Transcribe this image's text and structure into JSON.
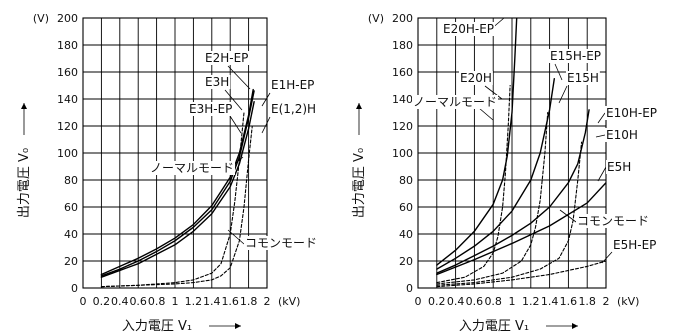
{
  "chart_data": [
    {
      "type": "line",
      "y_unit": "(V)",
      "x_unit": "(kV)",
      "xlabel": "入力電圧 V₁",
      "ylabel": "出力電圧 V₀",
      "xlim": [
        0,
        2
      ],
      "ylim": [
        0,
        200
      ],
      "x_ticks": [
        "0",
        "0.2",
        "0.4",
        "0.6",
        "0.8",
        "1",
        "1.2",
        "1.4",
        "1.6",
        "1.8",
        "2"
      ],
      "y_ticks": [
        "0",
        "20",
        "40",
        "60",
        "80",
        "100",
        "120",
        "140",
        "160",
        "180",
        "200"
      ],
      "grid": true,
      "series": [
        {
          "name": "E2H-EP",
          "style": "solid",
          "x": [
            0.2,
            0.4,
            0.6,
            0.8,
            1.0,
            1.2,
            1.4,
            1.6,
            1.7,
            1.8,
            1.85
          ],
          "y": [
            10,
            16,
            22,
            29,
            37,
            47,
            61,
            82,
            100,
            128,
            147
          ]
        },
        {
          "name": "E3H",
          "style": "solid",
          "x": [
            0.2,
            0.4,
            0.6,
            0.8,
            1.0,
            1.2,
            1.4,
            1.6,
            1.7,
            1.8,
            1.86
          ],
          "y": [
            9,
            14,
            20,
            27,
            35,
            45,
            58,
            79,
            97,
            126,
            146
          ]
        },
        {
          "name": "E3H-EP",
          "style": "dashed",
          "x": [
            0.2,
            0.6,
            1.0,
            1.2,
            1.4,
            1.5,
            1.6,
            1.65,
            1.7,
            1.75
          ],
          "y": [
            1,
            2,
            4,
            6,
            11,
            18,
            40,
            64,
            95,
            130
          ]
        },
        {
          "name": "E1H-EP",
          "style": "solid",
          "x": [
            0.2,
            0.4,
            0.6,
            0.8,
            1.0,
            1.2,
            1.4,
            1.6,
            1.7,
            1.8,
            1.86
          ],
          "y": [
            8,
            13,
            18,
            25,
            32,
            42,
            55,
            75,
            92,
            118,
            138
          ]
        },
        {
          "name": "E(1,2)H",
          "style": "dashed",
          "x": [
            0.2,
            0.6,
            1.0,
            1.2,
            1.4,
            1.5,
            1.6,
            1.7,
            1.75,
            1.8,
            1.84
          ],
          "y": [
            1,
            2,
            3,
            4,
            6,
            9,
            15,
            35,
            60,
            95,
            120
          ]
        }
      ],
      "annotations": [
        "E2H-EP",
        "E3H",
        "E3H-EP",
        "E1H-EP",
        "E(1,2)H",
        "ノーマルモード",
        "コモンモード"
      ]
    },
    {
      "type": "line",
      "y_unit": "(V)",
      "x_unit": "(kV)",
      "xlabel": "入力電圧 V₁",
      "ylabel": "出力電圧 V₀",
      "xlim": [
        0,
        2
      ],
      "ylim": [
        0,
        200
      ],
      "x_ticks": [
        "0",
        "0.2",
        "0.4",
        "0.6",
        "0.8",
        "1",
        "1.2",
        "1.4",
        "1.6",
        "1.8",
        "2"
      ],
      "y_ticks": [
        "0",
        "20",
        "40",
        "60",
        "80",
        "100",
        "120",
        "140",
        "160",
        "180",
        "200"
      ],
      "grid": true,
      "series": [
        {
          "name": "E20H-EP",
          "style": "solid",
          "x": [
            0.2,
            0.4,
            0.6,
            0.8,
            0.9,
            0.95,
            1.0,
            1.03,
            1.05
          ],
          "y": [
            17,
            28,
            42,
            62,
            80,
            98,
            130,
            170,
            200
          ]
        },
        {
          "name": "E20H",
          "style": "dashed",
          "x": [
            0.2,
            0.5,
            0.7,
            0.8,
            0.85,
            0.9,
            0.93,
            0.96,
            0.98
          ],
          "y": [
            4,
            8,
            16,
            26,
            38,
            60,
            85,
            120,
            150
          ]
        },
        {
          "name": "E15H-EP",
          "style": "solid",
          "x": [
            0.2,
            0.4,
            0.6,
            0.8,
            1.0,
            1.2,
            1.3,
            1.4,
            1.45
          ],
          "y": [
            14,
            22,
            31,
            42,
            57,
            80,
            100,
            132,
            155
          ]
        },
        {
          "name": "E15H",
          "style": "dashed",
          "x": [
            0.2,
            0.6,
            0.9,
            1.1,
            1.2,
            1.25,
            1.3,
            1.35,
            1.38
          ],
          "y": [
            3,
            6,
            11,
            20,
            32,
            45,
            65,
            100,
            130
          ]
        },
        {
          "name": "E10H-EP",
          "style": "solid",
          "x": [
            0.2,
            0.4,
            0.6,
            0.8,
            1.0,
            1.2,
            1.4,
            1.6,
            1.7,
            1.78,
            1.82
          ],
          "y": [
            11,
            17,
            24,
            31,
            39,
            48,
            60,
            78,
            92,
            115,
            132
          ]
        },
        {
          "name": "E10H",
          "style": "dashed",
          "x": [
            0.2,
            0.6,
            1.0,
            1.3,
            1.5,
            1.6,
            1.65,
            1.7,
            1.74
          ],
          "y": [
            2,
            4,
            8,
            14,
            22,
            35,
            50,
            80,
            108
          ]
        },
        {
          "name": "E5H",
          "style": "solid",
          "x": [
            0.2,
            0.6,
            1.0,
            1.4,
            1.8,
            2.0
          ],
          "y": [
            10,
            21,
            33,
            46,
            63,
            78
          ]
        },
        {
          "name": "E5H-EP",
          "style": "dashed",
          "x": [
            0.2,
            0.6,
            1.0,
            1.4,
            1.8,
            2.0
          ],
          "y": [
            1,
            3,
            6,
            10,
            16,
            20
          ]
        }
      ],
      "annotations": [
        "E20H-EP",
        "E20H",
        "E15H-EP",
        "E15H",
        "E10H-EP",
        "E10H",
        "E5H",
        "E5H-EP",
        "ノーマルモード",
        "コモンモード"
      ]
    }
  ]
}
